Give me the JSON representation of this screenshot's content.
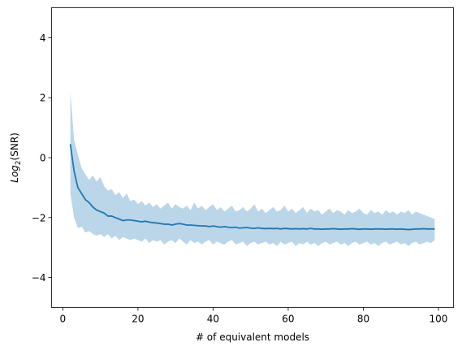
{
  "chart_data": {
    "type": "line",
    "title": "",
    "xlabel": "# of equivalent models",
    "ylabel_base": "Log",
    "ylabel_sub": "2",
    "ylabel_rest": "(SNR)",
    "xlim": [
      -3,
      104
    ],
    "ylim": [
      -5,
      5
    ],
    "xticks": [
      0,
      20,
      40,
      60,
      80,
      100
    ],
    "yticks": [
      -4,
      -2,
      0,
      2,
      4
    ],
    "xtick_labels": [
      "0",
      "20",
      "40",
      "60",
      "80",
      "100"
    ],
    "ytick_labels": [
      "−4",
      "−2",
      "0",
      "2",
      "4"
    ],
    "grid": false,
    "legend": "none",
    "line_color": "#1f77b4",
    "band_color": "#1f77b4",
    "band_alpha": 0.3,
    "x_start": 2,
    "x_end": 99,
    "mean": [
      0.45,
      -0.45,
      -1.0,
      -1.2,
      -1.4,
      -1.5,
      -1.65,
      -1.75,
      -1.8,
      -1.85,
      -1.95,
      -1.95,
      -2.0,
      -2.05,
      -2.1,
      -2.08,
      -2.08,
      -2.1,
      -2.12,
      -2.14,
      -2.12,
      -2.15,
      -2.17,
      -2.18,
      -2.2,
      -2.22,
      -2.22,
      -2.25,
      -2.22,
      -2.2,
      -2.22,
      -2.25,
      -2.25,
      -2.26,
      -2.27,
      -2.28,
      -2.28,
      -2.3,
      -2.28,
      -2.3,
      -2.32,
      -2.3,
      -2.32,
      -2.33,
      -2.32,
      -2.35,
      -2.34,
      -2.33,
      -2.35,
      -2.36,
      -2.34,
      -2.36,
      -2.37,
      -2.36,
      -2.37,
      -2.36,
      -2.38,
      -2.36,
      -2.37,
      -2.38,
      -2.37,
      -2.38,
      -2.37,
      -2.38,
      -2.36,
      -2.38,
      -2.38,
      -2.39,
      -2.38,
      -2.38,
      -2.37,
      -2.38,
      -2.39,
      -2.38,
      -2.38,
      -2.37,
      -2.38,
      -2.39,
      -2.38,
      -2.38,
      -2.39,
      -2.38,
      -2.38,
      -2.38,
      -2.39,
      -2.38,
      -2.38,
      -2.39,
      -2.38,
      -2.39,
      -2.4,
      -2.39,
      -2.38,
      -2.38,
      -2.37,
      -2.38,
      -2.38,
      -2.38
    ],
    "upper": [
      2.2,
      0.6,
      0.1,
      -0.35,
      -0.55,
      -0.75,
      -0.6,
      -0.8,
      -0.65,
      -0.95,
      -1.1,
      -1.05,
      -1.25,
      -1.15,
      -1.35,
      -1.2,
      -1.45,
      -1.4,
      -1.55,
      -1.45,
      -1.6,
      -1.5,
      -1.65,
      -1.55,
      -1.7,
      -1.6,
      -1.5,
      -1.7,
      -1.55,
      -1.65,
      -1.7,
      -1.6,
      -1.75,
      -1.5,
      -1.7,
      -1.6,
      -1.75,
      -1.65,
      -1.55,
      -1.75,
      -1.65,
      -1.8,
      -1.7,
      -1.6,
      -1.8,
      -1.75,
      -1.65,
      -1.8,
      -1.7,
      -1.55,
      -1.8,
      -1.7,
      -1.85,
      -1.75,
      -1.65,
      -1.8,
      -1.75,
      -1.6,
      -1.8,
      -1.7,
      -1.85,
      -1.75,
      -1.65,
      -1.85,
      -1.7,
      -1.8,
      -1.75,
      -1.9,
      -1.8,
      -1.7,
      -1.85,
      -1.75,
      -1.8,
      -1.9,
      -1.75,
      -1.85,
      -1.8,
      -1.7,
      -1.85,
      -1.9,
      -1.75,
      -1.85,
      -1.8,
      -1.9,
      -1.75,
      -1.85,
      -1.8,
      -1.9,
      -1.8,
      -1.85,
      -1.75,
      -1.9,
      -1.8,
      -1.85,
      -1.9,
      -1.95,
      -2.0,
      -2.05
    ],
    "lower": [
      -1.2,
      -2.0,
      -2.35,
      -2.3,
      -2.5,
      -2.45,
      -2.55,
      -2.6,
      -2.55,
      -2.65,
      -2.55,
      -2.7,
      -2.6,
      -2.75,
      -2.65,
      -2.7,
      -2.75,
      -2.7,
      -2.75,
      -2.8,
      -2.7,
      -2.85,
      -2.75,
      -2.8,
      -2.75,
      -2.9,
      -2.8,
      -2.75,
      -2.85,
      -2.7,
      -2.8,
      -2.9,
      -2.75,
      -2.85,
      -2.8,
      -2.9,
      -2.8,
      -2.75,
      -2.9,
      -2.8,
      -2.85,
      -2.9,
      -2.8,
      -2.75,
      -2.9,
      -2.85,
      -2.8,
      -2.95,
      -2.85,
      -2.8,
      -2.9,
      -2.85,
      -2.8,
      -2.9,
      -2.85,
      -2.95,
      -2.8,
      -2.9,
      -2.85,
      -2.8,
      -2.95,
      -2.85,
      -2.9,
      -2.8,
      -2.9,
      -2.85,
      -2.95,
      -2.85,
      -2.8,
      -2.9,
      -2.85,
      -2.8,
      -2.9,
      -2.85,
      -2.95,
      -2.85,
      -2.8,
      -2.9,
      -2.85,
      -2.8,
      -2.9,
      -2.85,
      -2.95,
      -2.85,
      -2.8,
      -2.9,
      -2.85,
      -2.8,
      -2.9,
      -2.85,
      -2.95,
      -2.85,
      -2.8,
      -2.9,
      -2.85,
      -2.8,
      -2.85,
      -2.75
    ]
  }
}
